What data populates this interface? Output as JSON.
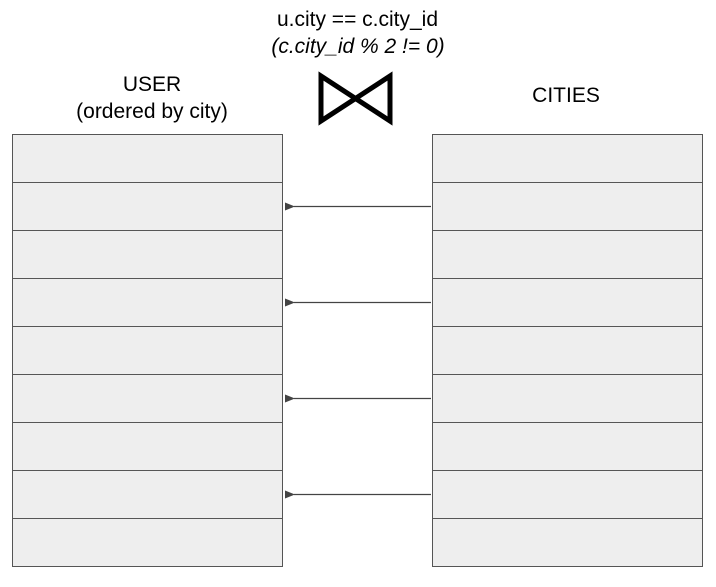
{
  "join": {
    "condition": "u.city == c.city_id",
    "filter": "(c.city_id % 2 != 0)",
    "symbol": "bowtie-join-icon"
  },
  "user_table": {
    "title": "USER",
    "subtitle": "(ordered by city)",
    "row_count": 9
  },
  "cities_table": {
    "title": "CITIES",
    "row_count": 9
  },
  "matches": [
    {
      "cities_row": 2,
      "user_row": 2
    },
    {
      "cities_row": 4,
      "user_row": 4
    },
    {
      "cities_row": 6,
      "user_row": 6
    },
    {
      "cities_row": 8,
      "user_row": 8
    }
  ],
  "colors": {
    "row_fill": "#eeeeee",
    "row_border": "#555555",
    "arrow": "#444444",
    "text": "#000000"
  }
}
